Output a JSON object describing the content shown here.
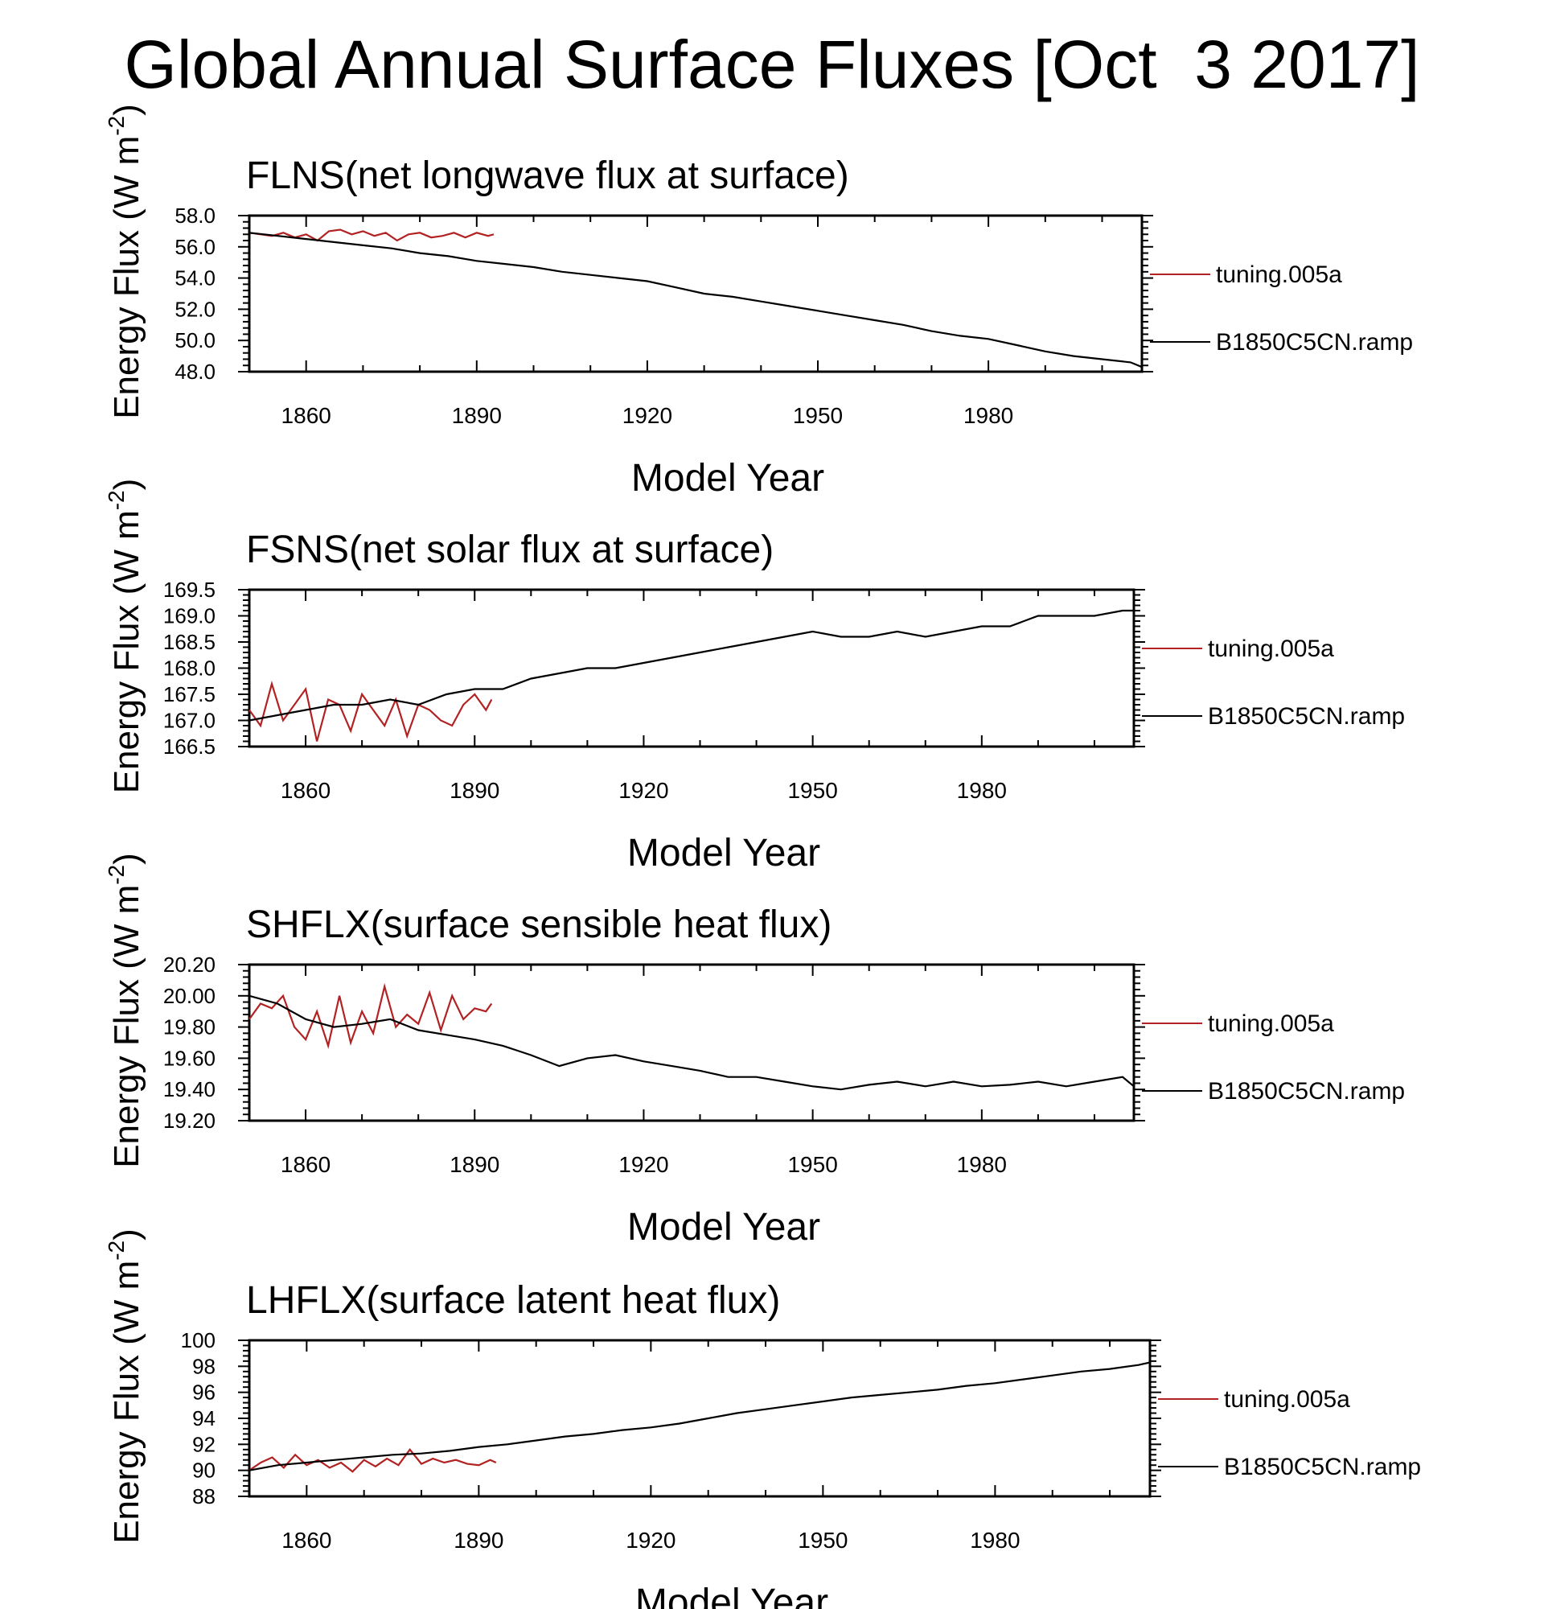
{
  "title": "Global Annual Surface Fluxes [Oct  3 2017]",
  "colors": {
    "tuning.005a": "#b22222",
    "B1850C5CN.ramp": "#000000"
  },
  "chart_data": [
    {
      "type": "line",
      "title": "FLNS(net longwave flux at surface)",
      "xlabel": "Model Year",
      "ylabel": "Energy Flux (W m",
      "ylabel_exp": "-2",
      "ylabel_close": ")",
      "xlim": [
        1850,
        2007
      ],
      "ylim": [
        48.0,
        58.0
      ],
      "xticks": [
        "1860",
        "1890",
        "1920",
        "1950",
        "1980"
      ],
      "yticks": [
        "48.0",
        "50.0",
        "52.0",
        "54.0",
        "56.0",
        "58.0"
      ],
      "grid": false,
      "legend_position": "right",
      "series": [
        {
          "name": "tuning.005a",
          "color": "#b22222",
          "x": [
            1850,
            1852,
            1854,
            1856,
            1858,
            1860,
            1862,
            1864,
            1866,
            1868,
            1870,
            1872,
            1874,
            1876,
            1878,
            1880,
            1882,
            1884,
            1886,
            1888,
            1890,
            1892,
            1893
          ],
          "values": [
            56.9,
            56.8,
            56.7,
            56.9,
            56.6,
            56.8,
            56.4,
            57.0,
            57.1,
            56.8,
            57.0,
            56.7,
            56.9,
            56.4,
            56.8,
            56.9,
            56.6,
            56.7,
            56.9,
            56.6,
            56.9,
            56.7,
            56.8
          ]
        },
        {
          "name": "B1850C5CN.ramp",
          "color": "#000000",
          "x": [
            1850,
            1855,
            1860,
            1865,
            1870,
            1875,
            1880,
            1885,
            1890,
            1895,
            1900,
            1905,
            1910,
            1915,
            1920,
            1925,
            1930,
            1935,
            1940,
            1945,
            1950,
            1955,
            1960,
            1965,
            1970,
            1975,
            1980,
            1985,
            1990,
            1995,
            2000,
            2005,
            2007
          ],
          "values": [
            56.9,
            56.7,
            56.5,
            56.3,
            56.1,
            55.9,
            55.6,
            55.4,
            55.1,
            54.9,
            54.7,
            54.4,
            54.2,
            54.0,
            53.8,
            53.4,
            53.0,
            52.8,
            52.5,
            52.2,
            51.9,
            51.6,
            51.3,
            51.0,
            50.6,
            50.3,
            50.1,
            49.7,
            49.3,
            49.0,
            48.8,
            48.6,
            48.3
          ]
        }
      ]
    },
    {
      "type": "line",
      "title": "FSNS(net solar flux at surface)",
      "xlabel": "Model Year",
      "ylabel": "Energy Flux (W m",
      "ylabel_exp": "-2",
      "ylabel_close": ")",
      "xlim": [
        1850,
        2007
      ],
      "ylim": [
        166.5,
        169.5
      ],
      "xticks": [
        "1860",
        "1890",
        "1920",
        "1950",
        "1980"
      ],
      "yticks": [
        "166.5",
        "167.0",
        "167.5",
        "168.0",
        "168.5",
        "169.0",
        "169.5"
      ],
      "grid": false,
      "legend_position": "right",
      "series": [
        {
          "name": "tuning.005a",
          "color": "#b22222",
          "x": [
            1850,
            1852,
            1854,
            1856,
            1858,
            1860,
            1862,
            1864,
            1866,
            1868,
            1870,
            1872,
            1874,
            1876,
            1878,
            1880,
            1882,
            1884,
            1886,
            1888,
            1890,
            1892,
            1893
          ],
          "values": [
            167.2,
            166.9,
            167.7,
            167.0,
            167.3,
            167.6,
            166.6,
            167.4,
            167.3,
            166.8,
            167.5,
            167.2,
            166.9,
            167.4,
            166.7,
            167.3,
            167.2,
            167.0,
            166.9,
            167.3,
            167.5,
            167.2,
            167.4
          ]
        },
        {
          "name": "B1850C5CN.ramp",
          "color": "#000000",
          "x": [
            1850,
            1855,
            1860,
            1865,
            1870,
            1875,
            1880,
            1885,
            1890,
            1895,
            1900,
            1905,
            1910,
            1915,
            1920,
            1925,
            1930,
            1935,
            1940,
            1945,
            1950,
            1955,
            1960,
            1965,
            1970,
            1975,
            1980,
            1985,
            1990,
            1995,
            2000,
            2005,
            2007
          ],
          "values": [
            167.0,
            167.1,
            167.2,
            167.3,
            167.3,
            167.4,
            167.3,
            167.5,
            167.6,
            167.6,
            167.8,
            167.9,
            168.0,
            168.0,
            168.1,
            168.2,
            168.3,
            168.4,
            168.5,
            168.6,
            168.7,
            168.6,
            168.6,
            168.7,
            168.6,
            168.7,
            168.8,
            168.8,
            169.0,
            169.0,
            169.0,
            169.1,
            169.1
          ]
        }
      ]
    },
    {
      "type": "line",
      "title": "SHFLX(surface sensible heat flux)",
      "xlabel": "Model Year",
      "ylabel": "Energy Flux (W m",
      "ylabel_exp": "-2",
      "ylabel_close": ")",
      "xlim": [
        1850,
        2007
      ],
      "ylim": [
        19.2,
        20.2
      ],
      "xticks": [
        "1860",
        "1890",
        "1920",
        "1950",
        "1980"
      ],
      "yticks": [
        "19.20",
        "19.40",
        "19.60",
        "19.80",
        "20.00",
        "20.20"
      ],
      "grid": false,
      "legend_position": "right",
      "series": [
        {
          "name": "tuning.005a",
          "color": "#b22222",
          "x": [
            1850,
            1852,
            1854,
            1856,
            1858,
            1860,
            1862,
            1864,
            1866,
            1868,
            1870,
            1872,
            1874,
            1876,
            1878,
            1880,
            1882,
            1884,
            1886,
            1888,
            1890,
            1892,
            1893
          ],
          "values": [
            19.85,
            19.95,
            19.92,
            20.0,
            19.8,
            19.72,
            19.9,
            19.68,
            20.0,
            19.7,
            19.9,
            19.76,
            20.06,
            19.8,
            19.88,
            19.82,
            20.02,
            19.78,
            20.0,
            19.85,
            19.92,
            19.9,
            19.95
          ]
        },
        {
          "name": "B1850C5CN.ramp",
          "color": "#000000",
          "x": [
            1850,
            1855,
            1860,
            1865,
            1870,
            1875,
            1880,
            1885,
            1890,
            1895,
            1900,
            1905,
            1910,
            1915,
            1920,
            1925,
            1930,
            1935,
            1940,
            1945,
            1950,
            1955,
            1960,
            1965,
            1970,
            1975,
            1980,
            1985,
            1990,
            1995,
            2000,
            2005,
            2007
          ],
          "values": [
            20.0,
            19.95,
            19.85,
            19.8,
            19.82,
            19.85,
            19.78,
            19.75,
            19.72,
            19.68,
            19.62,
            19.55,
            19.6,
            19.62,
            19.58,
            19.55,
            19.52,
            19.48,
            19.48,
            19.45,
            19.42,
            19.4,
            19.43,
            19.45,
            19.42,
            19.45,
            19.42,
            19.43,
            19.45,
            19.42,
            19.45,
            19.48,
            19.42
          ]
        }
      ]
    },
    {
      "type": "line",
      "title": "LHFLX(surface latent heat flux)",
      "xlabel": "Model Year",
      "ylabel": "Energy Flux (W m",
      "ylabel_exp": "-2",
      "ylabel_close": ")",
      "xlim": [
        1850,
        2007
      ],
      "ylim": [
        88,
        100
      ],
      "xticks": [
        "1860",
        "1890",
        "1920",
        "1950",
        "1980"
      ],
      "yticks": [
        "88",
        "90",
        "92",
        "94",
        "96",
        "98",
        "100"
      ],
      "grid": false,
      "legend_position": "right",
      "series": [
        {
          "name": "tuning.005a",
          "color": "#b22222",
          "x": [
            1850,
            1852,
            1854,
            1856,
            1858,
            1860,
            1862,
            1864,
            1866,
            1868,
            1870,
            1872,
            1874,
            1876,
            1878,
            1880,
            1882,
            1884,
            1886,
            1888,
            1890,
            1892,
            1893
          ],
          "values": [
            90.0,
            90.6,
            91.0,
            90.2,
            91.2,
            90.4,
            90.8,
            90.2,
            90.6,
            89.9,
            90.8,
            90.3,
            90.9,
            90.4,
            91.6,
            90.5,
            90.9,
            90.6,
            90.8,
            90.5,
            90.4,
            90.8,
            90.6
          ]
        },
        {
          "name": "B1850C5CN.ramp",
          "color": "#000000",
          "x": [
            1850,
            1855,
            1860,
            1865,
            1870,
            1875,
            1880,
            1885,
            1890,
            1895,
            1900,
            1905,
            1910,
            1915,
            1920,
            1925,
            1930,
            1935,
            1940,
            1945,
            1950,
            1955,
            1960,
            1965,
            1970,
            1975,
            1980,
            1985,
            1990,
            1995,
            2000,
            2005,
            2007
          ],
          "values": [
            90.0,
            90.4,
            90.6,
            90.8,
            91.0,
            91.2,
            91.3,
            91.5,
            91.8,
            92.0,
            92.3,
            92.6,
            92.8,
            93.1,
            93.3,
            93.6,
            94.0,
            94.4,
            94.7,
            95.0,
            95.3,
            95.6,
            95.8,
            96.0,
            96.2,
            96.5,
            96.7,
            97.0,
            97.3,
            97.6,
            97.8,
            98.1,
            98.3
          ]
        }
      ]
    }
  ]
}
